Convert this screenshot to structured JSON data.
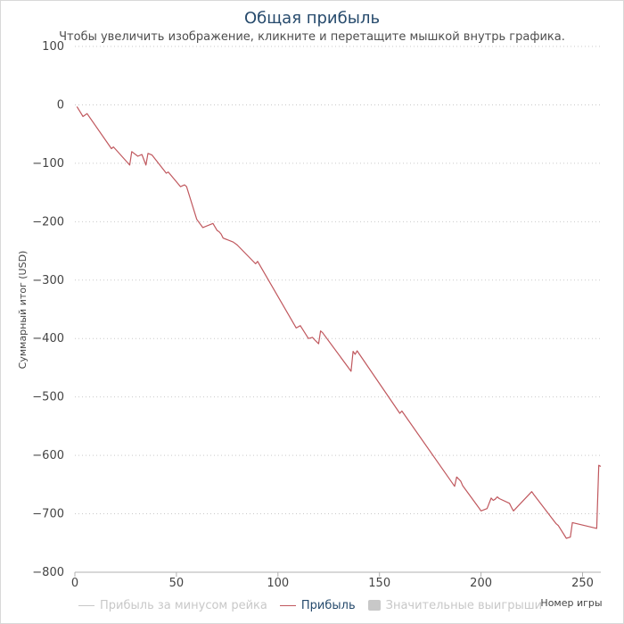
{
  "chart_data": {
    "type": "line",
    "title": "Общая прибыль",
    "subtitle": "Чтобы увеличить изображение, кликните и перетащите мышкой внутрь графика.",
    "ylabel": "Суммарный итог (USD)",
    "xlabel": "Номер игры",
    "xlim": [
      0,
      259
    ],
    "ylim": [
      -800,
      100
    ],
    "x_ticks": [
      0,
      50,
      100,
      150,
      200,
      250
    ],
    "y_ticks": [
      100,
      0,
      -100,
      -200,
      -300,
      -400,
      -500,
      -600,
      -700,
      -800
    ],
    "grid": true,
    "legend_position": "bottom",
    "series": [
      {
        "name": "Прибыль",
        "color": "#c0585e",
        "x": [
          1,
          4,
          6,
          18,
          19,
          27,
          28,
          31,
          33,
          35,
          36,
          38,
          45,
          46,
          52,
          54,
          55,
          60,
          63,
          68,
          70,
          71,
          72,
          73,
          78,
          80,
          89,
          90,
          109,
          111,
          115,
          117,
          118,
          120,
          121,
          122,
          136,
          137,
          138,
          139,
          160,
          161,
          187,
          188,
          190,
          191,
          199,
          200,
          203,
          205,
          206,
          207,
          208,
          209,
          214,
          215,
          216,
          225,
          226,
          237,
          238,
          242,
          244,
          245,
          257,
          258,
          259
        ],
        "y": [
          -3,
          -20,
          -15,
          -75,
          -72,
          -103,
          -80,
          -88,
          -85,
          -103,
          -83,
          -86,
          -117,
          -115,
          -140,
          -137,
          -140,
          -196,
          -210,
          -203,
          -215,
          -217,
          -221,
          -228,
          -235,
          -240,
          -272,
          -268,
          -382,
          -378,
          -400,
          -398,
          -402,
          -409,
          -387,
          -390,
          -456,
          -422,
          -427,
          -421,
          -528,
          -524,
          -653,
          -637,
          -644,
          -652,
          -690,
          -695,
          -691,
          -673,
          -677,
          -675,
          -671,
          -674,
          -682,
          -689,
          -695,
          -662,
          -667,
          -717,
          -720,
          -742,
          -740,
          -715,
          -725,
          -617,
          -619
        ]
      }
    ],
    "legend": [
      {
        "label": "Прибыль за минусом рейка",
        "symbol": "line",
        "color": "#c8c8c8",
        "active": false
      },
      {
        "label": "Прибыль",
        "symbol": "line",
        "color": "#c0585e",
        "active": true
      },
      {
        "label": "Значительные выигрыши",
        "symbol": "box",
        "color": "#c8c8c8",
        "active": false
      }
    ]
  }
}
